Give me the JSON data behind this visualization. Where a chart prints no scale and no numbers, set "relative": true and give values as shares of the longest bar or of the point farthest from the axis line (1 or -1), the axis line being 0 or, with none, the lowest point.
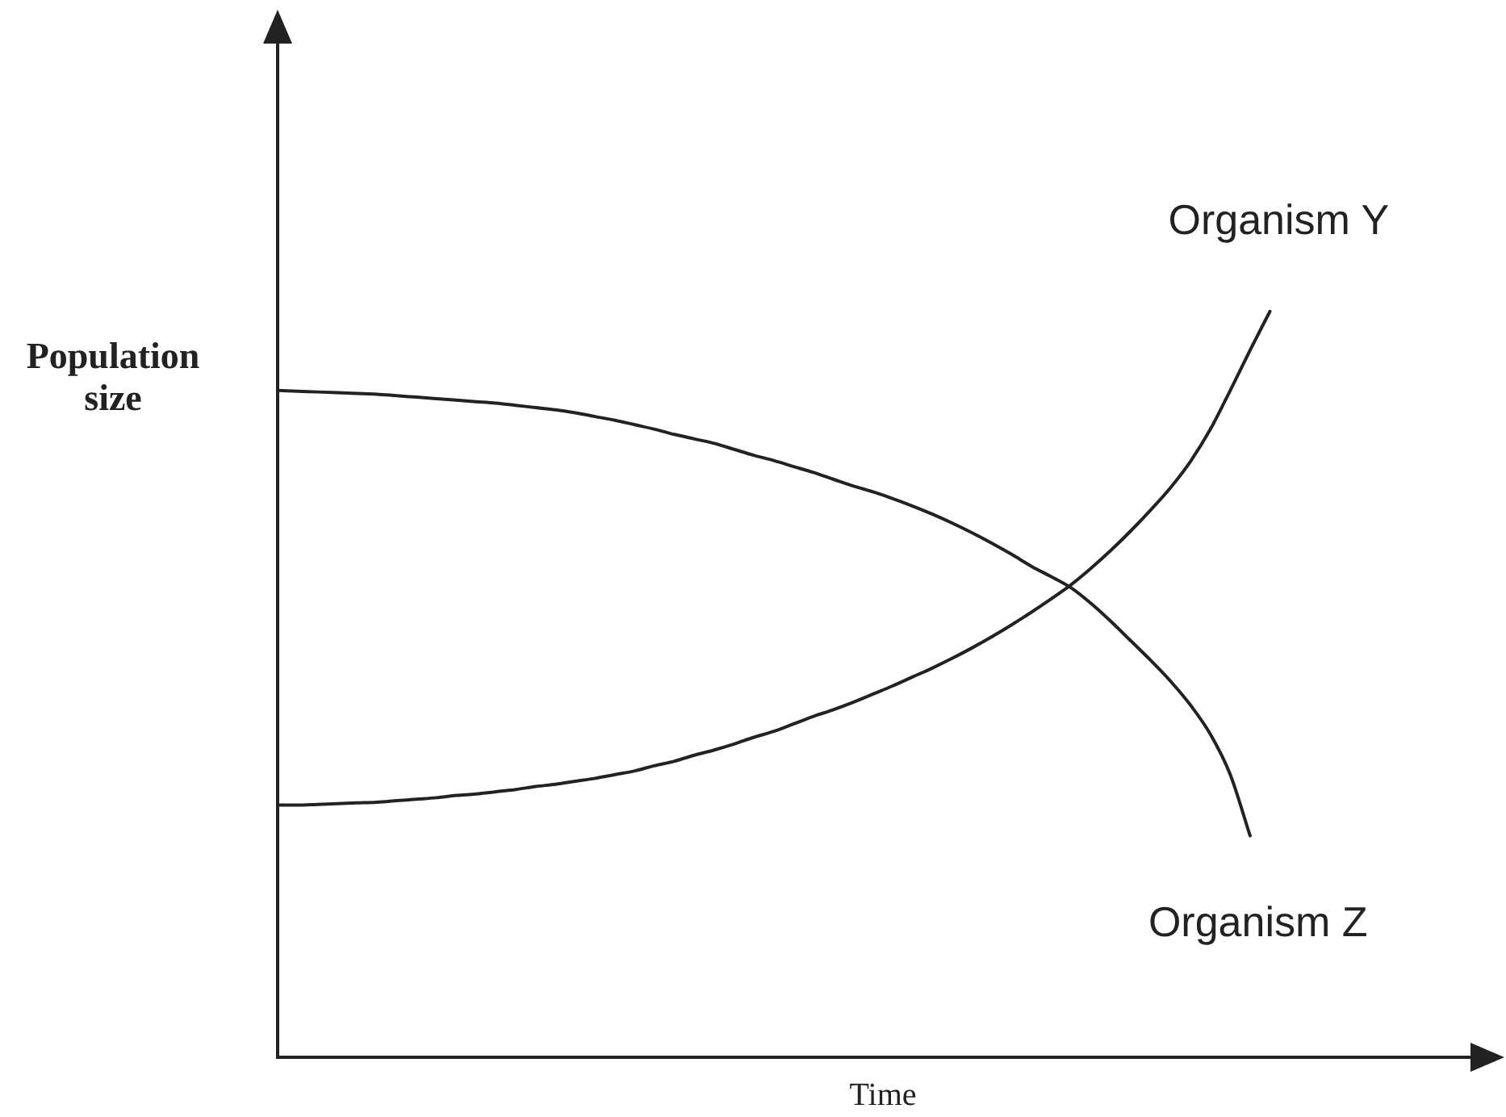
{
  "chart_data": {
    "type": "line",
    "xlabel": "Time",
    "ylabel": "Population size",
    "categories": [
      null,
      null,
      null,
      null,
      null,
      null,
      null,
      null,
      null,
      null,
      null,
      null,
      null,
      null,
      null,
      null,
      null,
      null,
      null,
      null,
      null,
      null,
      null,
      null,
      null,
      null,
      null,
      null,
      null,
      null,
      null,
      null,
      null,
      null,
      null,
      null,
      null,
      null,
      null,
      null,
      null,
      null,
      null,
      null,
      null,
      null,
      null,
      null,
      null,
      null,
      null,
      null,
      null,
      null,
      null,
      null,
      null,
      null,
      null,
      null,
      null,
      null
    ],
    "series": [
      {
        "name": "Organism Y",
        "color": "#222222",
        "values": [
          0.338,
          0.338,
          0.339,
          0.34,
          0.341,
          0.342,
          0.344,
          0.346,
          0.348,
          0.351,
          0.353,
          0.356,
          0.359,
          0.363,
          0.366,
          0.37,
          0.374,
          0.379,
          0.384,
          0.391,
          0.397,
          0.405,
          0.412,
          0.42,
          0.429,
          0.437,
          0.447,
          0.457,
          0.466,
          0.476,
          0.487,
          0.498,
          0.51,
          0.522,
          0.535,
          0.549,
          0.564,
          0.58,
          0.597,
          0.615,
          0.634,
          0.656,
          0.68,
          0.706,
          0.734,
          0.764,
          0.799,
          0.842,
          0.894,
          0.948,
          1,
          null,
          null,
          null,
          null,
          null,
          null,
          null,
          null,
          null,
          null,
          null
        ]
      },
      {
        "name": "Organism Z",
        "color": "#222222",
        "values": [
          0.894,
          0.893,
          0.892,
          0.891,
          0.89,
          0.889,
          0.887,
          0.885,
          0.883,
          0.881,
          0.879,
          0.877,
          0.874,
          0.871,
          0.868,
          0.864,
          0.859,
          0.854,
          0.848,
          0.842,
          0.835,
          0.829,
          0.823,
          0.815,
          0.807,
          0.8,
          0.792,
          0.784,
          0.775,
          0.766,
          0.758,
          0.749,
          0.739,
          0.728,
          0.716,
          0.703,
          0.689,
          0.674,
          0.658,
          0.644,
          0.629,
          0.608,
          0.584,
          0.558,
          0.532,
          0.504,
          0.472,
          0.433,
          0.379,
          0.297,
          null,
          null,
          null,
          null,
          null,
          null,
          null,
          null,
          null,
          null,
          null,
          null
        ]
      }
    ],
    "relative": true,
    "legend": false,
    "grid": false,
    "tick_labels": false,
    "marker": "none",
    "line_style": "solid"
  }
}
